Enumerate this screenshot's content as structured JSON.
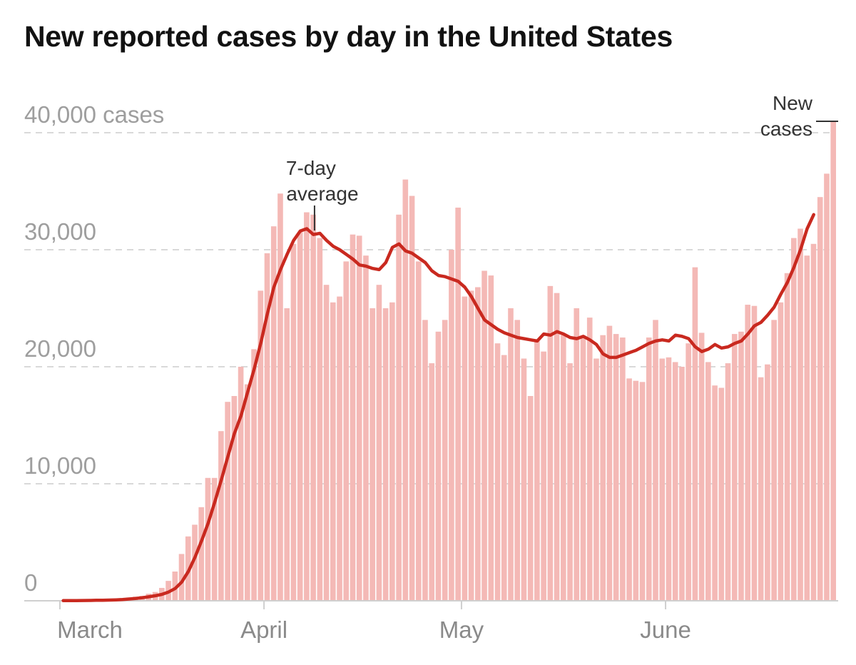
{
  "title": "New reported cases by day in the United States",
  "chart_data": {
    "type": "bar",
    "title": "New reported cases by day in the United States",
    "xlabel": "",
    "ylabel": "cases",
    "ylim": [
      0,
      41500
    ],
    "yticks": [
      {
        "value": 0,
        "label": "0"
      },
      {
        "value": 10000,
        "label": "10,000"
      },
      {
        "value": 20000,
        "label": "20,000"
      },
      {
        "value": 30000,
        "label": "30,000"
      },
      {
        "value": 40000,
        "label": "40,000 cases"
      }
    ],
    "xticks": [
      {
        "day": 0,
        "label": "March"
      },
      {
        "day": 31,
        "label": "April"
      },
      {
        "day": 61,
        "label": "May"
      },
      {
        "day": 92,
        "label": "June"
      }
    ],
    "series": [
      {
        "name": "New cases",
        "type": "bar",
        "values": [
          50,
          20,
          40,
          40,
          60,
          80,
          100,
          110,
          140,
          220,
          280,
          350,
          420,
          600,
          750,
          1100,
          1700,
          2500,
          4000,
          5500,
          6500,
          8000,
          10500,
          10500,
          14500,
          17000,
          17500,
          20000,
          18500,
          21500,
          26500,
          29700,
          32000,
          34800,
          25000,
          30500,
          31500,
          33200,
          33000,
          31000,
          27000,
          25500,
          26000,
          29000,
          31300,
          31200,
          29500,
          25000,
          27000,
          25000,
          25500,
          33000,
          36000,
          34600,
          29000,
          24000,
          20300,
          23000,
          24000,
          30000,
          33600,
          26000,
          26500,
          26800,
          28200,
          27800,
          22000,
          21000,
          25000,
          24000,
          20700,
          17500,
          22200,
          21300,
          26900,
          26300,
          22700,
          20300,
          25000,
          22500,
          24200,
          20700,
          22700,
          23500,
          22800,
          22500,
          19000,
          18800,
          18700,
          22500,
          24000,
          20700,
          20800,
          20400,
          20000,
          22000,
          28500,
          22900,
          20400,
          18400,
          18200,
          20300,
          22800,
          23000,
          25300,
          25200,
          19100,
          20200,
          24000,
          25500,
          28000,
          31000,
          31800,
          29500,
          30500,
          34500,
          36500,
          41000
        ]
      },
      {
        "name": "7-day average",
        "type": "line",
        "values": [
          10,
          15,
          20,
          25,
          30,
          40,
          50,
          60,
          80,
          110,
          150,
          200,
          260,
          340,
          430,
          550,
          750,
          1050,
          1600,
          2500,
          3700,
          5100,
          6600,
          8400,
          10300,
          12300,
          14300,
          15800,
          17800,
          19800,
          22000,
          24500,
          26800,
          28300,
          29600,
          30800,
          31600,
          31800,
          31300,
          31400,
          30800,
          30300,
          30000,
          29600,
          29200,
          28700,
          28600,
          28400,
          28300,
          28900,
          30200,
          30500,
          29900,
          29700,
          29300,
          28900,
          28200,
          27800,
          27700,
          27500,
          27300,
          26800,
          26000,
          25000,
          24000,
          23600,
          23200,
          22900,
          22700,
          22500,
          22400,
          22300,
          22200,
          22800,
          22700,
          23000,
          22800,
          22500,
          22400,
          22600,
          22300,
          21900,
          21100,
          20800,
          20800,
          21000,
          21200,
          21400,
          21700,
          22000,
          22200,
          22300,
          22200,
          22700,
          22600,
          22400,
          21700,
          21300,
          21500,
          21900,
          21600,
          21700,
          22000,
          22200,
          22800,
          23500,
          23800,
          24400,
          25100,
          26200,
          27200,
          28500,
          30000,
          31800,
          33000
        ]
      }
    ],
    "annotations": [
      {
        "text_lines": [
          "7-day",
          "average"
        ],
        "series": "7-day average",
        "day": 39
      },
      {
        "text_lines": [
          "New",
          "cases"
        ],
        "series": "New cases",
        "day": 116
      }
    ],
    "grid": true,
    "colors": {
      "bar": "#f4b9b6",
      "bar_edge": "#ffffff",
      "band": "#fbe3e2",
      "line": "#c9291f",
      "grid": "#d9d9d9",
      "axis": "#cfcfcf",
      "tick": "#9e9e9e",
      "annotation": "#333333"
    }
  }
}
